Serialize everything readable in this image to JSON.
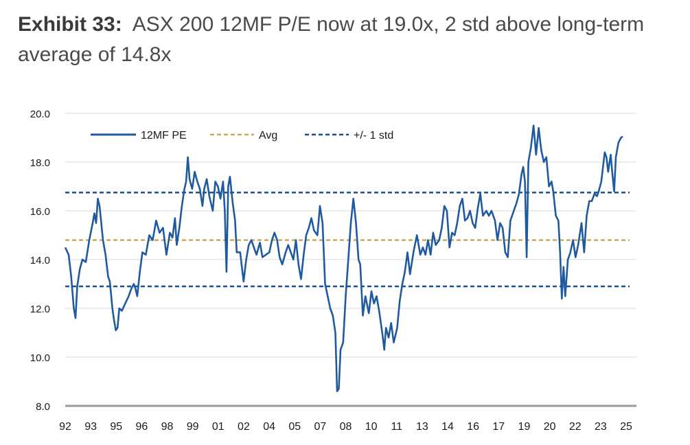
{
  "title": {
    "label": "Exhibit 33:",
    "text": "ASX 200 12MF P/E now at 19.0x, 2 std above long-term average of 14.8x"
  },
  "colors": {
    "pe": "#1f5aa0",
    "avg": "#c9aa5c",
    "std": "#1a4f8f",
    "grid": "#d9d9d9",
    "axis": "#999999"
  },
  "chart_data": {
    "type": "line",
    "title": "ASX 200 12MF P/E now at 19.0x, 2 std above long-term average of 14.8x",
    "xlabel": "",
    "ylabel": "",
    "ylim": [
      8.0,
      20.0
    ],
    "yticks": [
      "8.0",
      "10.0",
      "12.0",
      "14.0",
      "16.0",
      "18.0",
      "20.0"
    ],
    "xlim": [
      1992.0,
      2025.3
    ],
    "xticks": [
      "92",
      "93",
      "95",
      "96",
      "98",
      "99",
      "01",
      "02",
      "04",
      "05",
      "07",
      "08",
      "10",
      "11",
      "13",
      "14",
      "16",
      "17",
      "19",
      "20",
      "22",
      "23",
      "25"
    ],
    "grid": true,
    "legend_position": "top-left",
    "series": [
      {
        "name": "12MF PE",
        "points": [
          [
            1992.0,
            14.5
          ],
          [
            1992.2,
            14.2
          ],
          [
            1992.35,
            13.3
          ],
          [
            1992.5,
            12.0
          ],
          [
            1992.6,
            11.6
          ],
          [
            1992.7,
            12.9
          ],
          [
            1992.85,
            13.6
          ],
          [
            1993.0,
            14.0
          ],
          [
            1993.2,
            13.9
          ],
          [
            1993.4,
            14.8
          ],
          [
            1993.6,
            15.5
          ],
          [
            1993.7,
            15.9
          ],
          [
            1993.8,
            15.5
          ],
          [
            1993.9,
            16.5
          ],
          [
            1994.0,
            16.2
          ],
          [
            1994.2,
            14.8
          ],
          [
            1994.35,
            14.2
          ],
          [
            1994.5,
            13.3
          ],
          [
            1994.6,
            13.1
          ],
          [
            1994.75,
            12.0
          ],
          [
            1994.85,
            11.5
          ],
          [
            1994.95,
            11.1
          ],
          [
            1995.05,
            11.2
          ],
          [
            1995.15,
            12.0
          ],
          [
            1995.3,
            11.9
          ],
          [
            1995.5,
            12.2
          ],
          [
            1995.7,
            12.5
          ],
          [
            1995.85,
            12.8
          ],
          [
            1996.0,
            13.0
          ],
          [
            1996.1,
            12.8
          ],
          [
            1996.2,
            12.5
          ],
          [
            1996.35,
            13.5
          ],
          [
            1996.5,
            14.3
          ],
          [
            1996.7,
            14.2
          ],
          [
            1996.9,
            15.0
          ],
          [
            1997.1,
            14.8
          ],
          [
            1997.3,
            15.6
          ],
          [
            1997.5,
            15.1
          ],
          [
            1997.7,
            15.3
          ],
          [
            1997.9,
            14.2
          ],
          [
            1998.1,
            15.1
          ],
          [
            1998.25,
            14.9
          ],
          [
            1998.4,
            15.7
          ],
          [
            1998.5,
            14.6
          ],
          [
            1998.65,
            15.3
          ],
          [
            1998.8,
            16.2
          ],
          [
            1998.95,
            16.9
          ],
          [
            1999.05,
            17.2
          ],
          [
            1999.15,
            18.2
          ],
          [
            1999.25,
            17.3
          ],
          [
            1999.4,
            16.9
          ],
          [
            1999.55,
            17.6
          ],
          [
            1999.7,
            17.2
          ],
          [
            1999.85,
            16.9
          ],
          [
            2000.0,
            16.2
          ],
          [
            2000.1,
            16.9
          ],
          [
            2000.25,
            17.3
          ],
          [
            2000.4,
            16.6
          ],
          [
            2000.6,
            16.0
          ],
          [
            2000.75,
            17.2
          ],
          [
            2000.9,
            17.0
          ],
          [
            2001.05,
            16.5
          ],
          [
            2001.2,
            17.2
          ],
          [
            2001.3,
            16.0
          ],
          [
            2001.4,
            13.5
          ],
          [
            2001.5,
            17.0
          ],
          [
            2001.6,
            17.4
          ],
          [
            2001.75,
            16.4
          ],
          [
            2001.9,
            15.6
          ],
          [
            2002.0,
            14.3
          ],
          [
            2002.2,
            14.3
          ],
          [
            2002.4,
            13.1
          ],
          [
            2002.55,
            14.0
          ],
          [
            2002.7,
            14.6
          ],
          [
            2002.85,
            14.8
          ],
          [
            2003.0,
            14.5
          ],
          [
            2003.15,
            14.2
          ],
          [
            2003.35,
            14.7
          ],
          [
            2003.5,
            14.1
          ],
          [
            2003.7,
            14.2
          ],
          [
            2003.9,
            14.3
          ],
          [
            2004.05,
            14.8
          ],
          [
            2004.2,
            15.1
          ],
          [
            2004.35,
            14.8
          ],
          [
            2004.5,
            14.1
          ],
          [
            2004.65,
            13.8
          ],
          [
            2004.85,
            14.3
          ],
          [
            2005.0,
            14.6
          ],
          [
            2005.15,
            14.3
          ],
          [
            2005.3,
            14.0
          ],
          [
            2005.45,
            14.8
          ],
          [
            2005.6,
            13.8
          ],
          [
            2005.75,
            13.2
          ],
          [
            2005.9,
            14.2
          ],
          [
            2006.05,
            15.0
          ],
          [
            2006.2,
            15.3
          ],
          [
            2006.35,
            15.7
          ],
          [
            2006.5,
            15.2
          ],
          [
            2006.7,
            15.0
          ],
          [
            2006.85,
            16.2
          ],
          [
            2007.0,
            15.5
          ],
          [
            2007.15,
            13.0
          ],
          [
            2007.3,
            12.5
          ],
          [
            2007.45,
            12.0
          ],
          [
            2007.6,
            11.7
          ],
          [
            2007.75,
            11.0
          ],
          [
            2007.85,
            8.6
          ],
          [
            2007.95,
            8.7
          ],
          [
            2008.05,
            10.3
          ],
          [
            2008.2,
            10.6
          ],
          [
            2008.35,
            12.5
          ],
          [
            2008.5,
            14.0
          ],
          [
            2008.65,
            15.5
          ],
          [
            2008.8,
            16.5
          ],
          [
            2008.95,
            15.5
          ],
          [
            2009.1,
            14.0
          ],
          [
            2009.2,
            13.8
          ],
          [
            2009.35,
            11.7
          ],
          [
            2009.5,
            12.5
          ],
          [
            2009.7,
            11.8
          ],
          [
            2009.85,
            12.7
          ],
          [
            2010.0,
            12.2
          ],
          [
            2010.15,
            12.5
          ],
          [
            2010.3,
            11.9
          ],
          [
            2010.5,
            10.9
          ],
          [
            2010.6,
            10.3
          ],
          [
            2010.7,
            11.2
          ],
          [
            2010.85,
            10.8
          ],
          [
            2011.0,
            11.4
          ],
          [
            2011.15,
            10.6
          ],
          [
            2011.35,
            11.2
          ],
          [
            2011.5,
            12.3
          ],
          [
            2011.65,
            13.0
          ],
          [
            2011.8,
            13.5
          ],
          [
            2011.95,
            14.3
          ],
          [
            2012.1,
            13.4
          ],
          [
            2012.3,
            14.3
          ],
          [
            2012.5,
            15.0
          ],
          [
            2012.7,
            14.2
          ],
          [
            2012.85,
            14.5
          ],
          [
            2013.0,
            14.2
          ],
          [
            2013.15,
            14.8
          ],
          [
            2013.3,
            14.2
          ],
          [
            2013.45,
            15.1
          ],
          [
            2013.6,
            14.6
          ],
          [
            2013.8,
            14.8
          ],
          [
            2013.95,
            15.3
          ],
          [
            2014.1,
            16.2
          ],
          [
            2014.25,
            16.0
          ],
          [
            2014.4,
            14.5
          ],
          [
            2014.55,
            15.1
          ],
          [
            2014.7,
            15.0
          ],
          [
            2014.85,
            15.5
          ],
          [
            2015.0,
            16.2
          ],
          [
            2015.15,
            16.5
          ],
          [
            2015.3,
            15.6
          ],
          [
            2015.45,
            15.7
          ],
          [
            2015.6,
            16.0
          ],
          [
            2015.75,
            15.5
          ],
          [
            2015.9,
            15.3
          ],
          [
            2016.05,
            16.1
          ],
          [
            2016.2,
            16.7
          ],
          [
            2016.35,
            15.8
          ],
          [
            2016.55,
            16.0
          ],
          [
            2016.7,
            15.8
          ],
          [
            2016.85,
            16.0
          ],
          [
            2017.05,
            15.6
          ],
          [
            2017.2,
            14.8
          ],
          [
            2017.35,
            15.5
          ],
          [
            2017.5,
            15.3
          ],
          [
            2017.65,
            14.3
          ],
          [
            2017.8,
            14.1
          ],
          [
            2017.95,
            15.6
          ],
          [
            2018.1,
            15.9
          ],
          [
            2018.3,
            16.3
          ],
          [
            2018.45,
            16.7
          ],
          [
            2018.6,
            17.5
          ],
          [
            2018.7,
            17.8
          ],
          [
            2018.8,
            17.2
          ],
          [
            2018.9,
            14.1
          ],
          [
            2019.0,
            18.0
          ],
          [
            2019.15,
            18.6
          ],
          [
            2019.3,
            19.5
          ],
          [
            2019.45,
            18.3
          ],
          [
            2019.6,
            19.4
          ],
          [
            2019.75,
            18.5
          ],
          [
            2019.9,
            18.0
          ],
          [
            2020.05,
            18.2
          ],
          [
            2020.2,
            17.0
          ],
          [
            2020.35,
            17.2
          ],
          [
            2020.45,
            16.8
          ],
          [
            2020.6,
            15.8
          ],
          [
            2020.75,
            15.6
          ],
          [
            2020.85,
            14.3
          ],
          [
            2020.95,
            12.4
          ],
          [
            2021.05,
            13.7
          ],
          [
            2021.15,
            12.5
          ],
          [
            2021.3,
            14.0
          ],
          [
            2021.45,
            14.3
          ],
          [
            2021.6,
            14.8
          ],
          [
            2021.75,
            14.1
          ],
          [
            2021.9,
            14.6
          ],
          [
            2022.1,
            15.5
          ],
          [
            2022.25,
            14.3
          ],
          [
            2022.4,
            15.8
          ],
          [
            2022.55,
            16.4
          ],
          [
            2022.7,
            16.4
          ],
          [
            2022.85,
            16.7
          ],
          [
            2023.0,
            16.6
          ],
          [
            2023.1,
            16.8
          ],
          [
            2023.25,
            17.2
          ],
          [
            2023.35,
            17.8
          ],
          [
            2023.45,
            18.4
          ],
          [
            2023.55,
            18.2
          ],
          [
            2023.65,
            17.6
          ],
          [
            2023.8,
            18.3
          ],
          [
            2023.9,
            17.5
          ],
          [
            2024.0,
            16.8
          ],
          [
            2024.1,
            18.2
          ],
          [
            2024.25,
            18.8
          ],
          [
            2024.4,
            19.0
          ],
          [
            2024.5,
            19.05
          ]
        ]
      },
      {
        "name": "Avg",
        "value": 14.8
      },
      {
        "name": "+/- 1 std",
        "values": [
          16.75,
          12.9
        ]
      }
    ]
  }
}
